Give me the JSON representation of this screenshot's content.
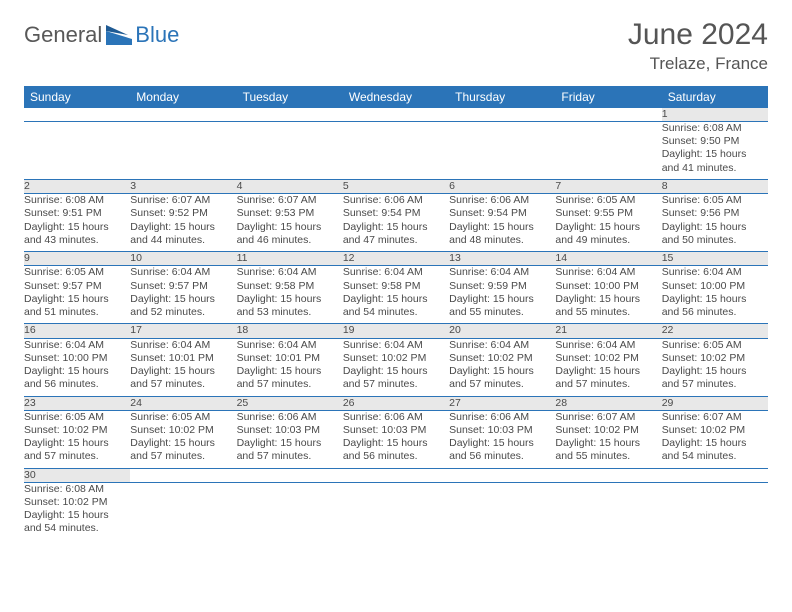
{
  "brand": {
    "name1": "General",
    "name2": "Blue",
    "brand_color": "#2b74b8"
  },
  "header": {
    "month": "June 2024",
    "location": "Trelaze, France"
  },
  "colors": {
    "header_bg": "#2b74b8",
    "header_text": "#ffffff",
    "daynum_bg": "#e8e8e8",
    "week_divider": "#2b74b8",
    "text": "#4a4a4a",
    "title_text": "#555555"
  },
  "daynames": [
    "Sunday",
    "Monday",
    "Tuesday",
    "Wednesday",
    "Thursday",
    "Friday",
    "Saturday"
  ],
  "weeks": [
    {
      "nums": [
        "",
        "",
        "",
        "",
        "",
        "",
        "1"
      ],
      "cells": [
        null,
        null,
        null,
        null,
        null,
        null,
        {
          "sunrise": "Sunrise: 6:08 AM",
          "sunset": "Sunset: 9:50 PM",
          "dl1": "Daylight: 15 hours",
          "dl2": "and 41 minutes."
        }
      ]
    },
    {
      "nums": [
        "2",
        "3",
        "4",
        "5",
        "6",
        "7",
        "8"
      ],
      "cells": [
        {
          "sunrise": "Sunrise: 6:08 AM",
          "sunset": "Sunset: 9:51 PM",
          "dl1": "Daylight: 15 hours",
          "dl2": "and 43 minutes."
        },
        {
          "sunrise": "Sunrise: 6:07 AM",
          "sunset": "Sunset: 9:52 PM",
          "dl1": "Daylight: 15 hours",
          "dl2": "and 44 minutes."
        },
        {
          "sunrise": "Sunrise: 6:07 AM",
          "sunset": "Sunset: 9:53 PM",
          "dl1": "Daylight: 15 hours",
          "dl2": "and 46 minutes."
        },
        {
          "sunrise": "Sunrise: 6:06 AM",
          "sunset": "Sunset: 9:54 PM",
          "dl1": "Daylight: 15 hours",
          "dl2": "and 47 minutes."
        },
        {
          "sunrise": "Sunrise: 6:06 AM",
          "sunset": "Sunset: 9:54 PM",
          "dl1": "Daylight: 15 hours",
          "dl2": "and 48 minutes."
        },
        {
          "sunrise": "Sunrise: 6:05 AM",
          "sunset": "Sunset: 9:55 PM",
          "dl1": "Daylight: 15 hours",
          "dl2": "and 49 minutes."
        },
        {
          "sunrise": "Sunrise: 6:05 AM",
          "sunset": "Sunset: 9:56 PM",
          "dl1": "Daylight: 15 hours",
          "dl2": "and 50 minutes."
        }
      ]
    },
    {
      "nums": [
        "9",
        "10",
        "11",
        "12",
        "13",
        "14",
        "15"
      ],
      "cells": [
        {
          "sunrise": "Sunrise: 6:05 AM",
          "sunset": "Sunset: 9:57 PM",
          "dl1": "Daylight: 15 hours",
          "dl2": "and 51 minutes."
        },
        {
          "sunrise": "Sunrise: 6:04 AM",
          "sunset": "Sunset: 9:57 PM",
          "dl1": "Daylight: 15 hours",
          "dl2": "and 52 minutes."
        },
        {
          "sunrise": "Sunrise: 6:04 AM",
          "sunset": "Sunset: 9:58 PM",
          "dl1": "Daylight: 15 hours",
          "dl2": "and 53 minutes."
        },
        {
          "sunrise": "Sunrise: 6:04 AM",
          "sunset": "Sunset: 9:58 PM",
          "dl1": "Daylight: 15 hours",
          "dl2": "and 54 minutes."
        },
        {
          "sunrise": "Sunrise: 6:04 AM",
          "sunset": "Sunset: 9:59 PM",
          "dl1": "Daylight: 15 hours",
          "dl2": "and 55 minutes."
        },
        {
          "sunrise": "Sunrise: 6:04 AM",
          "sunset": "Sunset: 10:00 PM",
          "dl1": "Daylight: 15 hours",
          "dl2": "and 55 minutes."
        },
        {
          "sunrise": "Sunrise: 6:04 AM",
          "sunset": "Sunset: 10:00 PM",
          "dl1": "Daylight: 15 hours",
          "dl2": "and 56 minutes."
        }
      ]
    },
    {
      "nums": [
        "16",
        "17",
        "18",
        "19",
        "20",
        "21",
        "22"
      ],
      "cells": [
        {
          "sunrise": "Sunrise: 6:04 AM",
          "sunset": "Sunset: 10:00 PM",
          "dl1": "Daylight: 15 hours",
          "dl2": "and 56 minutes."
        },
        {
          "sunrise": "Sunrise: 6:04 AM",
          "sunset": "Sunset: 10:01 PM",
          "dl1": "Daylight: 15 hours",
          "dl2": "and 57 minutes."
        },
        {
          "sunrise": "Sunrise: 6:04 AM",
          "sunset": "Sunset: 10:01 PM",
          "dl1": "Daylight: 15 hours",
          "dl2": "and 57 minutes."
        },
        {
          "sunrise": "Sunrise: 6:04 AM",
          "sunset": "Sunset: 10:02 PM",
          "dl1": "Daylight: 15 hours",
          "dl2": "and 57 minutes."
        },
        {
          "sunrise": "Sunrise: 6:04 AM",
          "sunset": "Sunset: 10:02 PM",
          "dl1": "Daylight: 15 hours",
          "dl2": "and 57 minutes."
        },
        {
          "sunrise": "Sunrise: 6:04 AM",
          "sunset": "Sunset: 10:02 PM",
          "dl1": "Daylight: 15 hours",
          "dl2": "and 57 minutes."
        },
        {
          "sunrise": "Sunrise: 6:05 AM",
          "sunset": "Sunset: 10:02 PM",
          "dl1": "Daylight: 15 hours",
          "dl2": "and 57 minutes."
        }
      ]
    },
    {
      "nums": [
        "23",
        "24",
        "25",
        "26",
        "27",
        "28",
        "29"
      ],
      "cells": [
        {
          "sunrise": "Sunrise: 6:05 AM",
          "sunset": "Sunset: 10:02 PM",
          "dl1": "Daylight: 15 hours",
          "dl2": "and 57 minutes."
        },
        {
          "sunrise": "Sunrise: 6:05 AM",
          "sunset": "Sunset: 10:02 PM",
          "dl1": "Daylight: 15 hours",
          "dl2": "and 57 minutes."
        },
        {
          "sunrise": "Sunrise: 6:06 AM",
          "sunset": "Sunset: 10:03 PM",
          "dl1": "Daylight: 15 hours",
          "dl2": "and 57 minutes."
        },
        {
          "sunrise": "Sunrise: 6:06 AM",
          "sunset": "Sunset: 10:03 PM",
          "dl1": "Daylight: 15 hours",
          "dl2": "and 56 minutes."
        },
        {
          "sunrise": "Sunrise: 6:06 AM",
          "sunset": "Sunset: 10:03 PM",
          "dl1": "Daylight: 15 hours",
          "dl2": "and 56 minutes."
        },
        {
          "sunrise": "Sunrise: 6:07 AM",
          "sunset": "Sunset: 10:02 PM",
          "dl1": "Daylight: 15 hours",
          "dl2": "and 55 minutes."
        },
        {
          "sunrise": "Sunrise: 6:07 AM",
          "sunset": "Sunset: 10:02 PM",
          "dl1": "Daylight: 15 hours",
          "dl2": "and 54 minutes."
        }
      ]
    },
    {
      "nums": [
        "30",
        "",
        "",
        "",
        "",
        "",
        ""
      ],
      "cells": [
        {
          "sunrise": "Sunrise: 6:08 AM",
          "sunset": "Sunset: 10:02 PM",
          "dl1": "Daylight: 15 hours",
          "dl2": "and 54 minutes."
        },
        null,
        null,
        null,
        null,
        null,
        null
      ]
    }
  ]
}
